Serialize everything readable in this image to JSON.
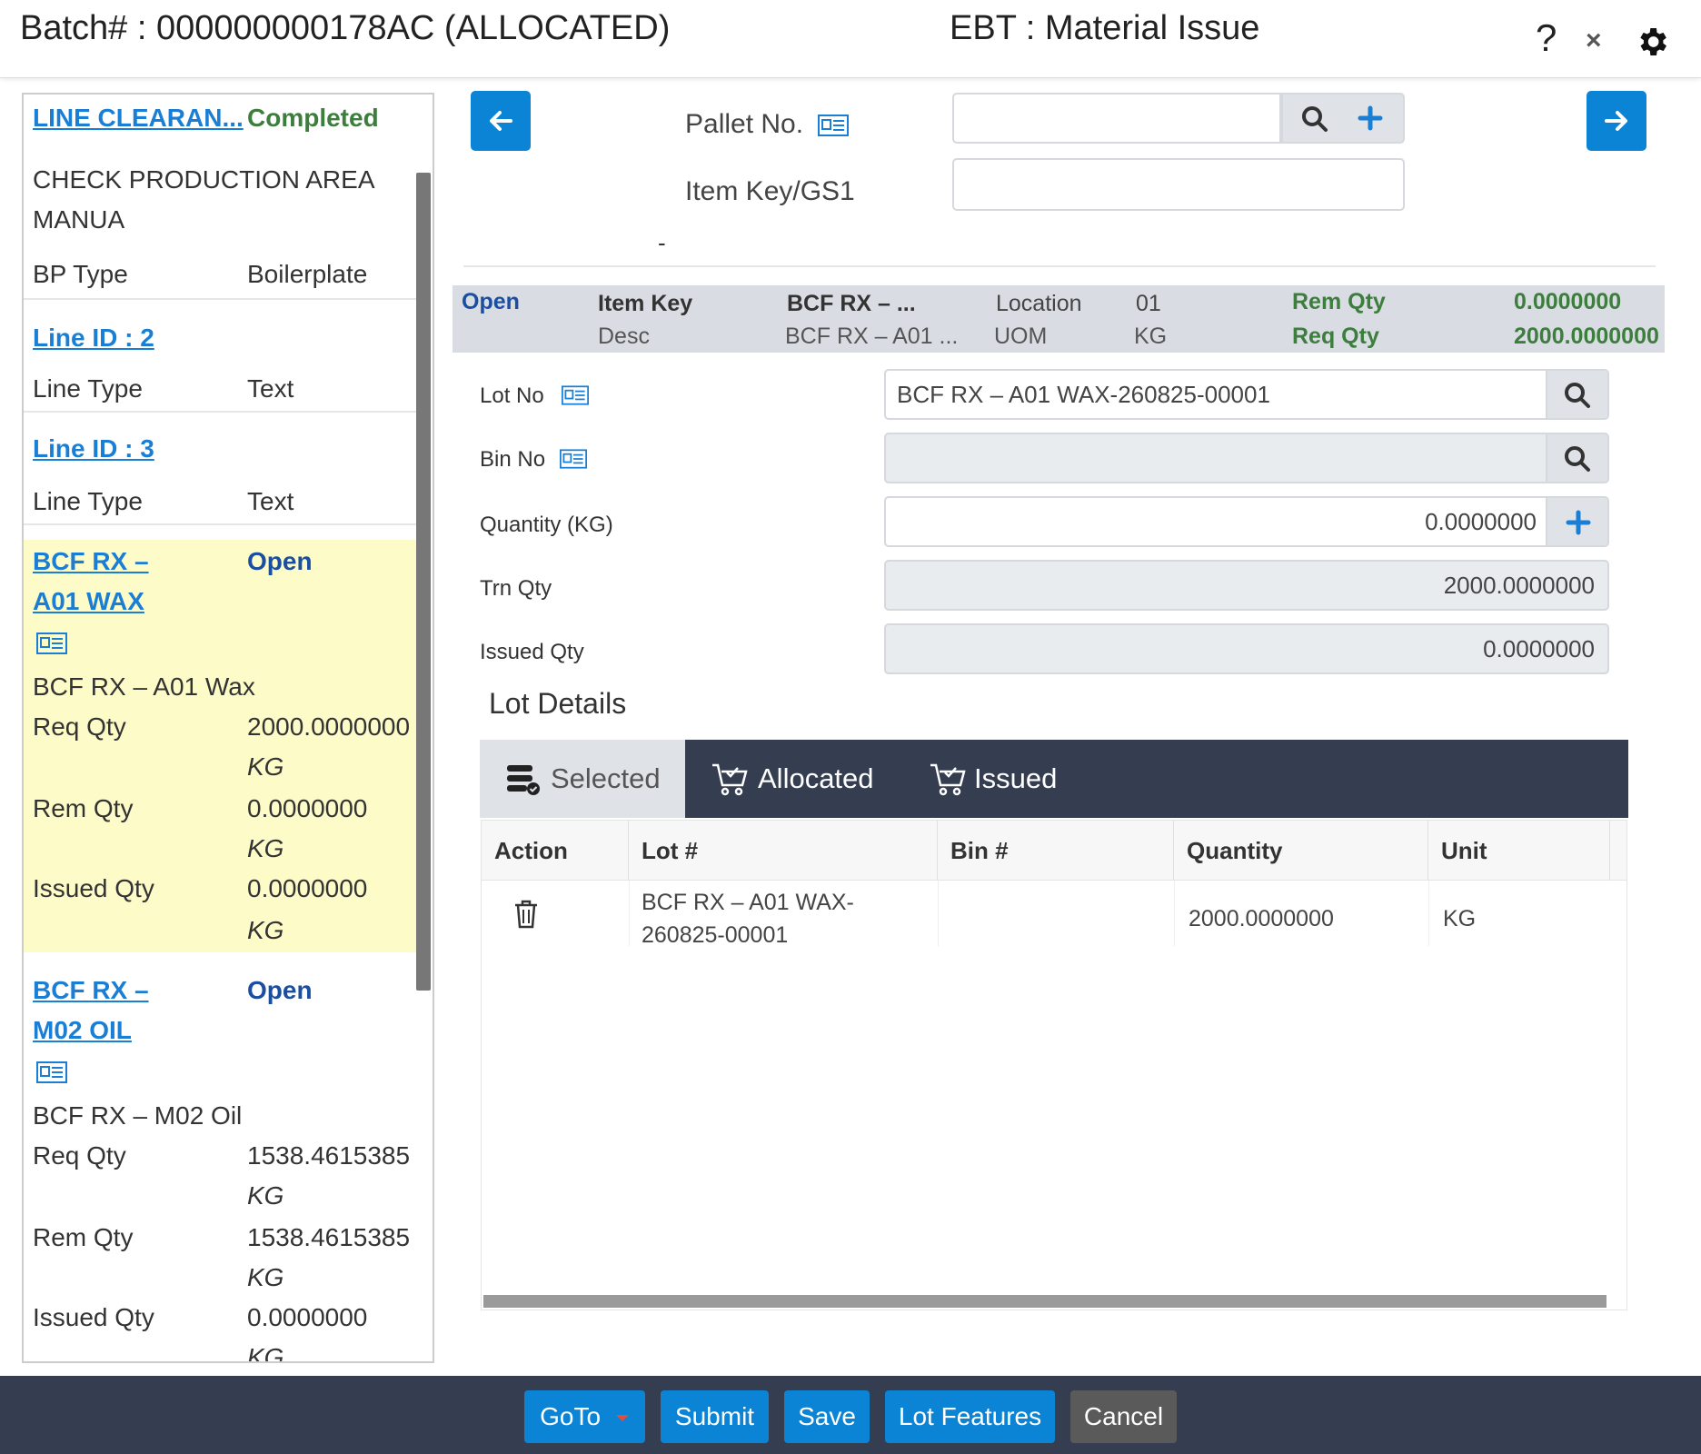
{
  "header": {
    "batch": "Batch# : 000000000178AC (ALLOCATED)",
    "title": "EBT : Material Issue",
    "help": "?",
    "close": "×"
  },
  "left": {
    "line_clearance": {
      "link": "LINE CLEARAN...",
      "status": "Completed"
    },
    "check_text": [
      "CHECK PRODUCTION AREA",
      "MANUA"
    ],
    "bp_type": {
      "label": "BP Type",
      "value": "Boilerplate"
    },
    "line2": {
      "link": "Line ID : 2",
      "type_label": "Line Type",
      "type_value": "Text"
    },
    "line3": {
      "link": "Line ID : 3",
      "type_label": "Line Type",
      "type_value": "Text"
    },
    "item1": {
      "link1": "BCF RX –",
      "link2": "A01 WAX",
      "status": "Open",
      "desc": "BCF RX – A01 Wax",
      "req_label": "Req Qty",
      "req_value": "2000.0000000",
      "req_unit": "KG",
      "rem_label": "Rem Qty",
      "rem_value": "0.0000000",
      "rem_unit": "KG",
      "iss_label": "Issued Qty",
      "iss_value": "0.0000000",
      "iss_unit": "KG"
    },
    "item2": {
      "link1": "BCF RX –",
      "link2": "M02 OIL",
      "status": "Open",
      "desc": "BCF RX – M02 Oil",
      "req_label": "Req Qty",
      "req_value": "1538.4615385",
      "req_unit": "KG",
      "rem_label": "Rem Qty",
      "rem_value": "1538.4615385",
      "rem_unit": "KG",
      "iss_label": "Issued Qty",
      "iss_value": "0.0000000",
      "iss_unit": "KG"
    }
  },
  "top": {
    "pallet_label": "Pallet No.",
    "pallet_value": "",
    "itemkey_label": "Item Key/GS1",
    "itemkey_value": "",
    "dash": "-"
  },
  "infobar": {
    "status": "Open",
    "item_key_label": "Item Key",
    "item_key_value": "BCF RX – ...",
    "desc_label": "Desc",
    "desc_value": "BCF RX – A01 ...",
    "location_label": "Location",
    "location_value": "01",
    "uom_label": "UOM",
    "uom_value": "KG",
    "rem_label": "Rem Qty",
    "rem_value": "0.0000000",
    "req_label": "Req Qty",
    "req_value": "2000.0000000"
  },
  "form": {
    "lot_label": "Lot No",
    "lot_value": "BCF RX – A01 WAX-260825-00001",
    "bin_label": "Bin No",
    "bin_value": "",
    "qty_label": "Quantity (KG)",
    "qty_value": "0.0000000",
    "trn_label": "Trn Qty",
    "trn_value": "2000.0000000",
    "issued_label": "Issued Qty",
    "issued_value": "0.0000000"
  },
  "lot_details": {
    "title": "Lot Details",
    "tabs": [
      "Selected",
      "Allocated",
      "Issued"
    ],
    "columns": [
      "Action",
      "Lot #",
      "Bin #",
      "Quantity",
      "Unit"
    ],
    "rows": [
      {
        "lot_line1": "BCF RX – A01 WAX-",
        "lot_line2": "260825-00001",
        "bin": "",
        "quantity": "2000.0000000",
        "unit": "KG"
      }
    ]
  },
  "footer": {
    "goto": "GoTo",
    "submit": "Submit",
    "save": "Save",
    "lot_features": "Lot Features",
    "cancel": "Cancel"
  },
  "colors": {
    "primary": "#0b84d6",
    "dark_bar": "#353e51",
    "highlight_row": "#fdfbc7",
    "completed_green": "#3d7d3d",
    "open_blue": "#1a4ea1"
  }
}
